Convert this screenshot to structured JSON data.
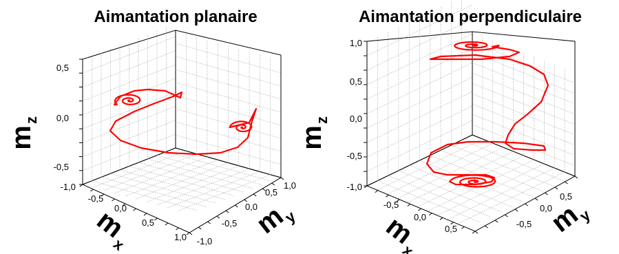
{
  "chart_data": [
    {
      "type": "line",
      "title": "Aimantation planaire",
      "xlabel": "m",
      "xlabel_sub": "x",
      "ylabel": "m",
      "ylabel_sub": "y",
      "zlabel": "m",
      "zlabel_sub": "z",
      "xlim": [
        -1.0,
        1.0
      ],
      "ylim": [
        -1.0,
        1.0
      ],
      "zlim": [
        -1.0,
        0.8
      ],
      "x_ticks": [
        "-1,0",
        "-0,5",
        "0,0",
        "0,5",
        "1,0"
      ],
      "y_ticks": [
        "-1,0",
        "-0,5",
        "0,0",
        "0,5",
        "1,0"
      ],
      "z_ticks": [
        "-1,0",
        "-0,5",
        "0,0",
        "0,5"
      ],
      "grid": true,
      "series": [
        {
          "color": "#ff0000",
          "note": "damped precession between two in-plane equilibria (+/- m_y), trajectory read off the projected plot",
          "points_panel_xy": [
            [
              0.2,
              -0.62
            ],
            [
              0.05,
              -0.62
            ],
            [
              -0.1,
              -0.55
            ],
            [
              -0.22,
              -0.42
            ],
            [
              -0.28,
              -0.28
            ],
            [
              -0.22,
              -0.17
            ],
            [
              -0.05,
              -0.12
            ],
            [
              0.15,
              -0.14
            ],
            [
              0.32,
              -0.2
            ],
            [
              0.45,
              -0.28
            ],
            [
              0.52,
              -0.35
            ],
            [
              0.5,
              -0.45
            ],
            [
              0.38,
              -0.52
            ],
            [
              0.22,
              -0.55
            ],
            [
              0.06,
              -0.52
            ],
            [
              -0.06,
              -0.45
            ],
            [
              -0.1,
              -0.38
            ],
            [
              -0.05,
              -0.33
            ],
            [
              0.04,
              -0.33
            ],
            [
              0.07,
              -0.38
            ],
            [
              0.02,
              -0.42
            ],
            [
              -0.03,
              -0.4
            ],
            [
              -0.02,
              -0.37
            ],
            [
              0.01,
              -0.37
            ]
          ]
        }
      ]
    },
    {
      "type": "line",
      "title": "Aimantation perpendiculaire",
      "xlabel": "m",
      "xlabel_sub": "x",
      "ylabel": "m",
      "ylabel_sub": "y",
      "zlabel": "m",
      "zlabel_sub": "z",
      "xlim": [
        -1.0,
        1.0
      ],
      "ylim": [
        -1.0,
        1.0
      ],
      "zlim": [
        -1.0,
        1.0
      ],
      "x_ticks": [
        "-0,5",
        "0,0",
        "0,5"
      ],
      "y_ticks": [
        "-0,5",
        "0,0",
        "0,5"
      ],
      "z_ticks": [
        "-1,0",
        "-0,5",
        "0,0",
        "0,5",
        "1,0"
      ],
      "grid": true,
      "series": [
        {
          "color": "#ff0000",
          "note": "switching from m_z = +1 to m_z = -1 through precessional spirals, trajectory read off the projected plot",
          "points_z_top_to_bottom": [
            1.0,
            0.9,
            0.8,
            0.6,
            0.3,
            0.0,
            -0.2,
            -0.5,
            -0.8,
            -1.0
          ]
        }
      ]
    }
  ]
}
